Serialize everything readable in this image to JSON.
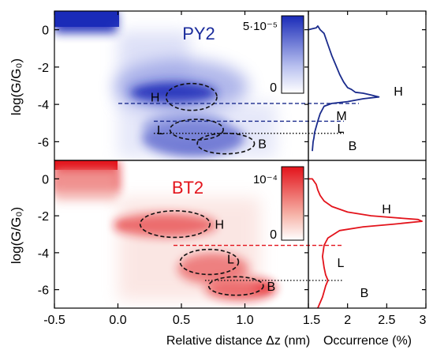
{
  "chart_data": [
    {
      "type": "heatmap",
      "panel": "top-left",
      "name": "PY2",
      "colorbar_max": "5·10⁻⁵",
      "colorbar_min": "0",
      "colormap_color": "#1a2bb8",
      "xlim": [
        -0.5,
        1.5
      ],
      "ylim": [
        -7,
        1
      ],
      "ylabel": "log(G/G₀)",
      "yticks": [
        0,
        -2,
        -4,
        -6
      ],
      "regions": [
        {
          "label": "H",
          "cx": 0.58,
          "cy": -3.6,
          "rx": 0.4,
          "ry": 0.72
        },
        {
          "label": "L",
          "cx": 0.62,
          "cy": -5.35,
          "rx": 0.42,
          "ry": 0.55
        },
        {
          "label": "B",
          "cx": 0.85,
          "cy": -6.1,
          "rx": 0.45,
          "ry": 0.55
        }
      ],
      "plateau_labels": [
        "H",
        "M",
        "L",
        "B"
      ],
      "guide_lines": [
        {
          "label": "M",
          "y": -3.95,
          "style": "dashed"
        },
        {
          "label": "L",
          "y": -4.9,
          "style": "dashed"
        },
        {
          "label": "B",
          "y": -5.55,
          "style": "dotted"
        }
      ]
    },
    {
      "type": "line",
      "panel": "top-right",
      "name": "PY2",
      "color": "#1a2b8c",
      "xlim": [
        1.5,
        3
      ],
      "series": [
        {
          "x": [
            1.5,
            1.55,
            1.6,
            1.62,
            1.65,
            1.7,
            1.75,
            1.8,
            1.85,
            1.9,
            1.95,
            2.0,
            2.05,
            2.1,
            2.2,
            2.3,
            2.4,
            2.2,
            2.0,
            1.8,
            1.7,
            1.65,
            1.62,
            1.6,
            1.58,
            1.57,
            1.56,
            1.55
          ],
          "y": [
            0.0,
            0.05,
            0.1,
            0.2,
            0.0,
            -0.2,
            -0.8,
            -1.4,
            -1.9,
            -2.4,
            -2.8,
            -3.1,
            -3.2,
            -3.35,
            -3.4,
            -3.5,
            -3.6,
            -3.7,
            -3.85,
            -3.95,
            -4.1,
            -4.5,
            -4.9,
            -5.2,
            -5.5,
            -5.8,
            -6.0,
            -6.5
          ]
        }
      ]
    },
    {
      "type": "heatmap",
      "panel": "bottom-left",
      "name": "BT2",
      "colorbar_max": "10⁻⁴",
      "colorbar_min": "0",
      "colormap_color": "#e3131b",
      "xlim": [
        -0.5,
        1.5
      ],
      "ylim": [
        -7,
        1
      ],
      "xlabel": "Relative distance Δz (nm)",
      "ylabel": "log(G/G₀)",
      "xticks": [
        -0.5,
        0.0,
        0.5,
        1.0
      ],
      "yticks": [
        0,
        -2,
        -4,
        -6
      ],
      "regions": [
        {
          "label": "H",
          "cx": 0.45,
          "cy": -2.45,
          "rx": 0.55,
          "ry": 0.72
        },
        {
          "label": "L",
          "cx": 0.72,
          "cy": -4.5,
          "rx": 0.46,
          "ry": 0.68
        },
        {
          "label": "B",
          "cx": 0.93,
          "cy": -5.8,
          "rx": 0.43,
          "ry": 0.5
        }
      ],
      "plateau_labels": [
        "H",
        "L",
        "B"
      ],
      "guide_lines": [
        {
          "label": "L",
          "y": -3.6,
          "style": "dashed"
        },
        {
          "label": "B",
          "y": -5.5,
          "style": "dotted"
        }
      ]
    },
    {
      "type": "line",
      "panel": "bottom-right",
      "name": "BT2",
      "color": "#e3131b",
      "xlim": [
        1.5,
        3
      ],
      "xlabel": "Occurrence (%)",
      "xticks": [
        1.5,
        2,
        2.5,
        3
      ],
      "series": [
        {
          "x": [
            1.5,
            1.55,
            1.6,
            1.62,
            1.65,
            1.7,
            1.8,
            2.0,
            2.3,
            2.6,
            2.9,
            2.95,
            2.6,
            2.2,
            1.9,
            1.75,
            1.7,
            1.68,
            1.7,
            1.72,
            1.75,
            1.72,
            1.7,
            1.68,
            1.65,
            1.62
          ],
          "y": [
            0.0,
            0.0,
            -0.3,
            -0.6,
            -0.9,
            -1.2,
            -1.5,
            -1.8,
            -2.0,
            -2.1,
            -2.2,
            -2.3,
            -2.45,
            -2.6,
            -2.8,
            -3.2,
            -3.6,
            -4.2,
            -4.8,
            -5.2,
            -5.5,
            -5.8,
            -6.1,
            -6.4,
            -6.7,
            -7.0
          ]
        }
      ]
    }
  ]
}
